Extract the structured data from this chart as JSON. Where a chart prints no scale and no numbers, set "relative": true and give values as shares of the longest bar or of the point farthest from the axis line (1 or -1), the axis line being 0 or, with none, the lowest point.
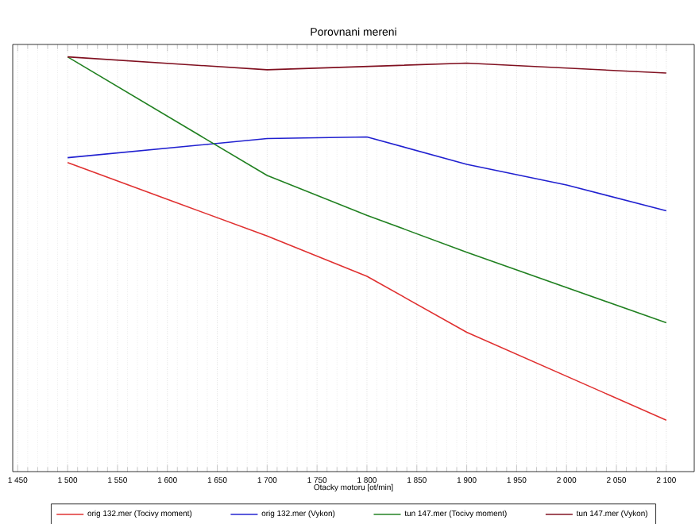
{
  "chart_data": {
    "type": "line",
    "title": "Porovnani mereni",
    "xlabel": "Otacky motoru [ot/min]",
    "relative": true,
    "grid": true,
    "legend": "bottom",
    "marker": "none",
    "line_style": "solid",
    "xlim": [
      1445,
      2128
    ],
    "xticks": [
      {
        "value": 1450,
        "label": "1 450"
      },
      {
        "value": 1500,
        "label": "1 500"
      },
      {
        "value": 1550,
        "label": "1 550"
      },
      {
        "value": 1600,
        "label": "1 600"
      },
      {
        "value": 1650,
        "label": "1 650"
      },
      {
        "value": 1700,
        "label": "1 700"
      },
      {
        "value": 1750,
        "label": "1 750"
      },
      {
        "value": 1800,
        "label": "1 800"
      },
      {
        "value": 1850,
        "label": "1 850"
      },
      {
        "value": 1900,
        "label": "1 900"
      },
      {
        "value": 1950,
        "label": "1 950"
      },
      {
        "value": 2000,
        "label": "2 000"
      },
      {
        "value": 2050,
        "label": "2 050"
      },
      {
        "value": 2100,
        "label": "2 100"
      }
    ],
    "series": [
      {
        "name": "orig 132.mer  (Tocivy moment)",
        "color": "#e03030",
        "x": [
          1500,
          1700,
          1800,
          1900,
          2100
        ],
        "values": [
          0.745,
          0.568,
          0.471,
          0.336,
          0.124
        ]
      },
      {
        "name": "orig 132.mer  (Vykon)",
        "color": "#2020d0",
        "x": [
          1500,
          1700,
          1800,
          1900,
          2000,
          2100
        ],
        "values": [
          0.757,
          0.803,
          0.807,
          0.741,
          0.691,
          0.629
        ]
      },
      {
        "name": "tun 147.mer  (Tocivy moment)",
        "color": "#208020",
        "x": [
          1500,
          1700,
          1800,
          1900,
          2100
        ],
        "values": [
          1.0,
          0.714,
          0.618,
          0.529,
          0.359
        ]
      },
      {
        "name": "tun 147.mer  (Vykon)",
        "color": "#801020",
        "x": [
          1500,
          1700,
          1800,
          1900,
          2100
        ],
        "values": [
          1.0,
          0.969,
          0.977,
          0.985,
          0.961
        ]
      }
    ]
  }
}
